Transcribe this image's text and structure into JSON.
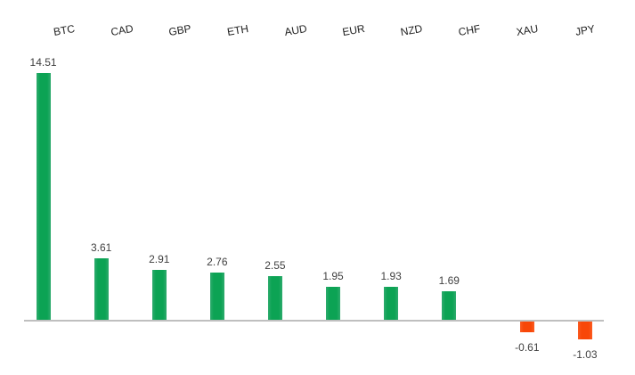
{
  "chart_data": {
    "type": "bar",
    "title": "",
    "xlabel": "",
    "ylabel": "",
    "categories": [
      "BTC",
      "CAD",
      "GBP",
      "ETH",
      "AUD",
      "EUR",
      "NZD",
      "CHF",
      "XAU",
      "JPY"
    ],
    "values": [
      14.51,
      3.61,
      2.91,
      2.76,
      2.55,
      1.95,
      1.93,
      1.69,
      -0.61,
      -1.03
    ],
    "value_labels": [
      "14.51",
      "3.61",
      "2.91",
      "2.76",
      "2.55",
      "1.95",
      "1.93",
      "1.69",
      "-0.61",
      "-1.03"
    ],
    "ylim": [
      -1.03,
      14.51
    ],
    "baseline": 0,
    "grid": false,
    "legend": "none",
    "data_labels": true,
    "category_labels_position": "top",
    "category_label_rotation_deg": -10,
    "colors": {
      "positive_bar": "#0ca354",
      "negative_bar": "#f84708",
      "axis_line": "#bfbfbf",
      "value_label_text": "#3f3f3f",
      "category_label_text": "#1f1f1f",
      "background": "#ffffff"
    }
  }
}
